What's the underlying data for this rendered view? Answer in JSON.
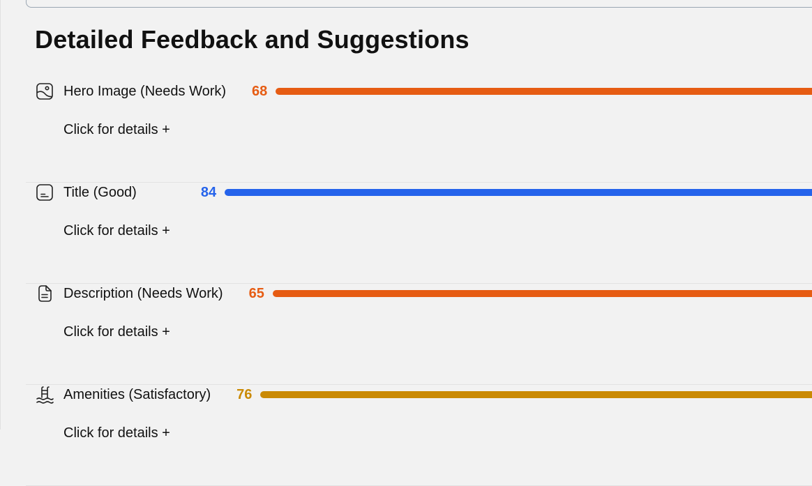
{
  "section": {
    "title": "Detailed Feedback and Suggestions"
  },
  "items": [
    {
      "label": "Hero Image (Needs Work)",
      "score": "68",
      "color": "#e65c13",
      "icon": "image-icon",
      "details": "Click for details +"
    },
    {
      "label": "Title (Good)",
      "score": "84",
      "color": "#2563eb",
      "icon": "caption-icon",
      "details": "Click for details +"
    },
    {
      "label": "Description (Needs Work)",
      "score": "65",
      "color": "#e65c13",
      "icon": "document-icon",
      "details": "Click for details +"
    },
    {
      "label": "Amenities (Satisfactory)",
      "score": "76",
      "color": "#ca8a04",
      "icon": "pool-ladder-icon",
      "details": "Click for details +"
    }
  ]
}
